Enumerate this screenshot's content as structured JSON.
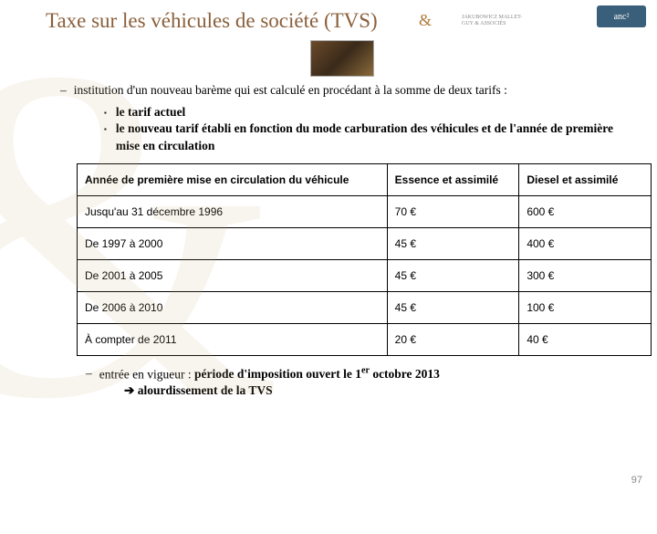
{
  "slide": {
    "title": "Taxe sur les véhicules de société (TVS)",
    "page_number": "97",
    "colors": {
      "title_color": "#8a5f3a",
      "table_border": "#000000",
      "background": "#ffffff",
      "pagenum_color": "#888888"
    }
  },
  "logos": {
    "firm": "JAKUBOWICZ MALLET-GUY & ASSOCIÉS",
    "amp": "&",
    "anc": "anc²"
  },
  "intro": {
    "dash": "–",
    "text": "institution d'un nouveau barème qui est calculé en procédant à la somme de deux tarifs :"
  },
  "sub_bullets": {
    "marker": "▪",
    "items": [
      "le tarif actuel",
      "le nouveau tarif établi en fonction du mode carburation des véhicules et de l'année de première mise en circulation"
    ]
  },
  "table": {
    "columns": [
      "Année de première mise en circulation du véhicule",
      "Essence et assimilé",
      "Diesel et assimilé"
    ],
    "rows": [
      [
        "Jusqu'au 31 décembre 1996",
        "70 €",
        "600 €"
      ],
      [
        "De 1997 à 2000",
        "45 €",
        "400 €"
      ],
      [
        "De 2001 à 2005",
        "45 €",
        "300 €"
      ],
      [
        "De 2006 à 2010",
        "45 €",
        "100 €"
      ],
      [
        "À compter de 2011",
        "20 €",
        "40 €"
      ]
    ],
    "font_family": "Arial",
    "font_size_pt": 9,
    "col_widths_pct": [
      54,
      23,
      23
    ]
  },
  "footer": {
    "dash": "–",
    "line1_pre": "entrée en vigueur : ",
    "line1_bold_a": "période d'imposition ouvert le 1",
    "line1_sup": "er",
    "line1_bold_b": " octobre 2013",
    "arrow": "➔",
    "line2": " alourdissement de la TVS"
  }
}
